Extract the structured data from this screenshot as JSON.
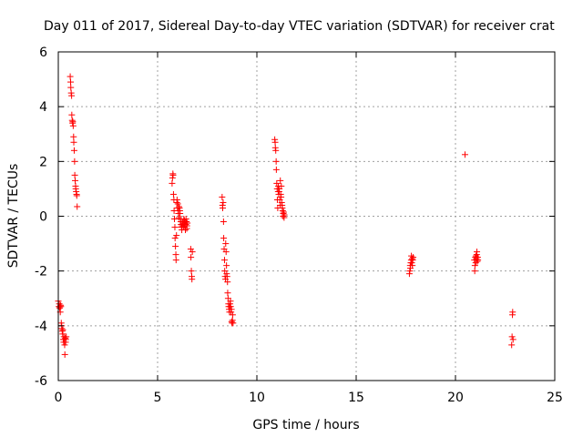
{
  "chart_data": {
    "type": "scatter",
    "title": "Day 011 of 2017, Sidereal Day-to-day VTEC variation (SDTVAR) for receiver crat",
    "xlabel": "GPS time / hours",
    "ylabel": "SDTVAR / TECUs",
    "xlim": [
      0,
      25
    ],
    "ylim": [
      -6,
      6
    ],
    "xticks": [
      "0",
      "5",
      "10",
      "15",
      "20",
      "25"
    ],
    "yticks": [
      "-6",
      "-4",
      "-2",
      "0",
      "2",
      "4",
      "6"
    ],
    "grid": true,
    "marker": "+",
    "colors": {
      "series": "#ff0000",
      "grid": "#a0a0a0"
    },
    "series": [
      {
        "x": [
          0.0,
          0.03,
          0.05,
          0.07,
          0.08,
          0.1,
          0.12,
          0.13,
          0.15,
          0.17,
          0.18,
          0.2,
          0.22,
          0.23,
          0.25,
          0.27,
          0.28,
          0.3,
          0.32,
          0.33,
          0.35,
          0.37,
          0.38,
          0.4,
          0.6,
          0.62,
          0.63,
          0.65,
          0.67,
          0.68,
          0.7,
          0.72,
          0.73,
          0.75,
          0.77,
          0.78,
          0.8,
          0.82,
          0.83,
          0.85,
          0.87,
          0.88,
          0.9,
          0.92,
          0.93,
          0.95,
          5.73,
          5.75,
          5.77,
          5.78,
          5.8,
          5.82,
          5.83,
          5.85,
          5.87,
          5.88,
          5.9,
          5.92,
          5.93,
          5.95,
          5.97,
          5.98,
          6.0,
          6.02,
          6.03,
          6.05,
          6.07,
          6.08,
          6.1,
          6.12,
          6.13,
          6.15,
          6.17,
          6.18,
          6.2,
          6.22,
          6.23,
          6.25,
          6.27,
          6.28,
          6.3,
          6.32,
          6.33,
          6.35,
          6.37,
          6.38,
          6.4,
          6.42,
          6.43,
          6.45,
          6.47,
          6.48,
          6.5,
          6.67,
          6.68,
          6.7,
          6.72,
          6.73,
          6.75,
          8.25,
          8.27,
          8.28,
          8.3,
          8.32,
          8.33,
          8.35,
          8.37,
          8.38,
          8.4,
          8.42,
          8.43,
          8.45,
          8.47,
          8.48,
          8.5,
          8.52,
          8.53,
          8.55,
          8.57,
          8.58,
          8.6,
          8.62,
          8.63,
          8.65,
          8.67,
          8.68,
          8.7,
          8.72,
          8.73,
          8.75,
          8.77,
          8.78,
          8.8,
          10.9,
          10.92,
          10.93,
          10.95,
          10.97,
          10.98,
          11.0,
          11.02,
          11.03,
          11.05,
          11.07,
          11.08,
          11.1,
          11.12,
          11.13,
          11.15,
          11.17,
          11.18,
          11.2,
          11.22,
          11.23,
          11.25,
          11.27,
          11.28,
          11.3,
          11.32,
          11.33,
          11.35,
          11.37,
          11.38,
          17.68,
          17.7,
          17.72,
          17.73,
          17.75,
          17.77,
          17.78,
          17.8,
          17.82,
          17.83,
          17.85,
          17.87,
          20.48,
          20.95,
          20.97,
          20.98,
          21.0,
          21.02,
          21.03,
          21.05,
          21.07,
          21.08,
          21.1,
          21.12,
          21.13,
          22.83,
          22.85,
          22.87,
          22.88,
          22.9
        ],
        "y": [
          -3.1,
          -3.3,
          -3.2,
          -3.35,
          -3.3,
          -3.5,
          -3.25,
          -3.3,
          -3.9,
          -4.0,
          -4.1,
          -4.2,
          -4.3,
          -4.15,
          -4.5,
          -4.6,
          -4.4,
          -4.5,
          -4.7,
          -5.05,
          -4.45,
          -4.6,
          -4.5,
          -4.4,
          5.1,
          4.9,
          4.7,
          4.5,
          4.4,
          3.7,
          3.5,
          3.4,
          3.45,
          3.3,
          2.9,
          2.7,
          2.4,
          2.0,
          1.5,
          1.3,
          1.1,
          1.0,
          0.9,
          0.8,
          0.75,
          0.35,
          1.2,
          1.4,
          1.55,
          1.5,
          0.8,
          0.6,
          0.2,
          -0.1,
          -0.4,
          -0.8,
          -1.1,
          -1.4,
          -1.6,
          -0.7,
          0.5,
          0.6,
          0.3,
          0.45,
          0.2,
          0.1,
          -0.05,
          0.35,
          0.3,
          0.2,
          0.1,
          -0.1,
          -0.2,
          -0.3,
          -0.4,
          -0.5,
          -0.35,
          -0.25,
          -0.2,
          -0.3,
          -0.4,
          -0.1,
          -0.3,
          -0.15,
          -0.35,
          -0.2,
          -0.5,
          -0.3,
          -0.1,
          -0.2,
          -0.45,
          -0.35,
          -0.25,
          -1.2,
          -1.5,
          -2.0,
          -2.2,
          -2.3,
          -1.3,
          0.7,
          0.4,
          0.3,
          0.5,
          -0.2,
          -0.8,
          -1.2,
          -1.6,
          -2.0,
          -2.2,
          -2.3,
          -1.0,
          -1.3,
          -1.8,
          -2.1,
          -2.2,
          -2.4,
          -2.8,
          -3.0,
          -3.2,
          -3.3,
          -3.4,
          -3.5,
          -3.3,
          -3.2,
          -3.1,
          -3.3,
          -3.5,
          -3.4,
          -3.85,
          -3.9,
          -3.8,
          -3.6,
          -3.9,
          2.8,
          2.7,
          2.5,
          2.4,
          2.0,
          1.7,
          1.2,
          1.0,
          0.6,
          0.3,
          0.9,
          1.1,
          0.8,
          0.9,
          1.0,
          0.6,
          0.4,
          1.3,
          0.8,
          0.7,
          1.1,
          0.5,
          0.4,
          0.3,
          0.2,
          0.0,
          0.1,
          0.15,
          -0.05,
          0.05,
          -2.1,
          -2.0,
          -1.8,
          -1.9,
          -1.7,
          -1.6,
          -1.45,
          -1.7,
          -1.55,
          -1.8,
          -1.6,
          -1.5,
          2.25,
          -1.6,
          -2.0,
          -1.8,
          -1.5,
          -1.7,
          -1.45,
          -1.55,
          -1.4,
          -1.3,
          -1.65,
          -1.5,
          -1.6,
          -4.7,
          -4.4,
          -3.6,
          -3.5,
          -4.5
        ]
      }
    ]
  }
}
